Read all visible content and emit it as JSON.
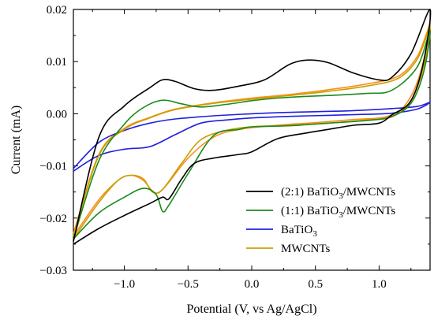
{
  "chart_data": {
    "type": "line",
    "xlabel": "Potential (V, vs Ag/AgCl)",
    "ylabel": "Current (mA)",
    "xlim": [
      -1.4,
      1.4
    ],
    "ylim": [
      -0.03,
      0.02
    ],
    "x_ticks": [
      -1.0,
      -0.5,
      0.0,
      0.5,
      1.0
    ],
    "x_tick_labels": [
      "−1.0",
      "−0.5",
      "0.0",
      "0.5",
      "1.0"
    ],
    "y_ticks": [
      -0.03,
      -0.02,
      -0.01,
      0.0,
      0.01,
      0.02
    ],
    "y_tick_labels": [
      "−0.03",
      "−0.02",
      "−0.01",
      "0.00",
      "0.01",
      "0.02"
    ],
    "grid": false,
    "legend_position": "bottom-right",
    "series": [
      {
        "name": "(2:1) BaTiO3/MWCNTs",
        "label_main": "(2:1) BaTiO",
        "label_sub": "3",
        "label_tail": "/MWCNTs",
        "color": "#000000",
        "points": [
          [
            -1.4,
            -0.025
          ],
          [
            -1.2,
            -0.022
          ],
          [
            -1.0,
            -0.0195
          ],
          [
            -0.8,
            -0.0172
          ],
          [
            -0.7,
            -0.016
          ],
          [
            -0.65,
            -0.0163
          ],
          [
            -0.55,
            -0.0125
          ],
          [
            -0.45,
            -0.0095
          ],
          [
            -0.3,
            -0.0085
          ],
          [
            -0.1,
            -0.0078
          ],
          [
            0.0,
            -0.0073
          ],
          [
            0.2,
            -0.0048
          ],
          [
            0.4,
            -0.0038
          ],
          [
            0.6,
            -0.003
          ],
          [
            0.8,
            -0.0022
          ],
          [
            1.0,
            -0.0018
          ],
          [
            1.1,
            -0.0002
          ],
          [
            1.25,
            0.0025
          ],
          [
            1.35,
            0.01
          ],
          [
            1.4,
            0.02
          ],
          [
            1.25,
            0.0115
          ],
          [
            1.1,
            0.007
          ],
          [
            1.0,
            0.0065
          ],
          [
            0.8,
            0.0078
          ],
          [
            0.6,
            0.0098
          ],
          [
            0.45,
            0.0103
          ],
          [
            0.3,
            0.0095
          ],
          [
            0.1,
            0.0065
          ],
          [
            -0.1,
            0.0053
          ],
          [
            -0.3,
            0.0045
          ],
          [
            -0.45,
            0.0048
          ],
          [
            -0.6,
            0.0062
          ],
          [
            -0.7,
            0.0065
          ],
          [
            -0.8,
            0.005
          ],
          [
            -1.0,
            0.0015
          ],
          [
            -1.2,
            -0.0045
          ],
          [
            -1.4,
            -0.0245
          ]
        ]
      },
      {
        "name": "(1:1) BaTiO3/MWCNTs",
        "label_main": "(1:1) BaTiO",
        "label_sub": "3",
        "label_tail": "/MWCNTs",
        "color": "#1c8a1c",
        "points": [
          [
            -1.4,
            -0.024
          ],
          [
            -1.2,
            -0.019
          ],
          [
            -1.0,
            -0.016
          ],
          [
            -0.85,
            -0.0143
          ],
          [
            -0.75,
            -0.0155
          ],
          [
            -0.7,
            -0.0187
          ],
          [
            -0.65,
            -0.0175
          ],
          [
            -0.5,
            -0.0115
          ],
          [
            -0.3,
            -0.0042
          ],
          [
            -0.1,
            -0.003
          ],
          [
            0.0,
            -0.0025
          ],
          [
            0.3,
            -0.0023
          ],
          [
            0.6,
            -0.0018
          ],
          [
            0.9,
            -0.0013
          ],
          [
            1.1,
            -0.0005
          ],
          [
            1.25,
            0.002
          ],
          [
            1.35,
            0.008
          ],
          [
            1.4,
            0.016
          ],
          [
            1.3,
            0.009
          ],
          [
            1.1,
            0.0045
          ],
          [
            0.9,
            0.0039
          ],
          [
            0.6,
            0.0035
          ],
          [
            0.4,
            0.0033
          ],
          [
            0.2,
            0.003
          ],
          [
            0.0,
            0.0025
          ],
          [
            -0.2,
            0.0018
          ],
          [
            -0.4,
            0.0013
          ],
          [
            -0.55,
            0.0019
          ],
          [
            -0.7,
            0.0026
          ],
          [
            -0.85,
            0.0012
          ],
          [
            -1.0,
            -0.002
          ],
          [
            -1.2,
            -0.009
          ],
          [
            -1.4,
            -0.024
          ]
        ]
      },
      {
        "name": "BaTiO3",
        "label_main": "BaTiO",
        "label_sub": "3",
        "label_tail": "",
        "color": "#2020e0",
        "points": [
          [
            -1.4,
            -0.011
          ],
          [
            -1.2,
            -0.008
          ],
          [
            -1.0,
            -0.0068
          ],
          [
            -0.8,
            -0.0063
          ],
          [
            -0.6,
            -0.004
          ],
          [
            -0.4,
            -0.0018
          ],
          [
            -0.2,
            -0.0012
          ],
          [
            0.0,
            -0.0008
          ],
          [
            0.3,
            -0.0005
          ],
          [
            0.6,
            -0.0003
          ],
          [
            0.9,
            -0.0001
          ],
          [
            1.1,
            0.0001
          ],
          [
            1.3,
            0.0009
          ],
          [
            1.4,
            0.0022
          ],
          [
            1.3,
            0.0014
          ],
          [
            1.1,
            0.001
          ],
          [
            0.8,
            0.0006
          ],
          [
            0.5,
            0.0004
          ],
          [
            0.2,
            0.0002
          ],
          [
            0.0,
            0.0
          ],
          [
            -0.3,
            -0.0004
          ],
          [
            -0.6,
            -0.001
          ],
          [
            -0.8,
            -0.0018
          ],
          [
            -1.0,
            -0.0032
          ],
          [
            -1.2,
            -0.0055
          ],
          [
            -1.4,
            -0.0105
          ]
        ]
      },
      {
        "name": "MWCNTs",
        "label_main": "MWCNTs",
        "label_sub": "",
        "label_tail": "",
        "color": "#c8a000",
        "points": [
          [
            -1.4,
            -0.024
          ],
          [
            -1.2,
            -0.017
          ],
          [
            -1.05,
            -0.0128
          ],
          [
            -0.95,
            -0.0118
          ],
          [
            -0.85,
            -0.0125
          ],
          [
            -0.78,
            -0.015
          ],
          [
            -0.7,
            -0.0145
          ],
          [
            -0.55,
            -0.0095
          ],
          [
            -0.4,
            -0.005
          ],
          [
            -0.2,
            -0.0032
          ],
          [
            0.0,
            -0.0025
          ],
          [
            0.3,
            -0.0022
          ],
          [
            0.6,
            -0.0018
          ],
          [
            0.9,
            -0.0012
          ],
          [
            1.1,
            -0.0006
          ],
          [
            1.25,
            0.0025
          ],
          [
            1.35,
            0.009
          ],
          [
            1.4,
            0.0165
          ],
          [
            1.3,
            0.0105
          ],
          [
            1.15,
            0.0068
          ],
          [
            0.9,
            0.0053
          ],
          [
            0.6,
            0.0043
          ],
          [
            0.3,
            0.0035
          ],
          [
            0.0,
            0.0028
          ],
          [
            -0.3,
            0.002
          ],
          [
            -0.6,
            0.0008
          ],
          [
            -0.8,
            -0.0008
          ],
          [
            -1.0,
            -0.003
          ],
          [
            -1.2,
            -0.008
          ],
          [
            -1.4,
            -0.0235
          ]
        ]
      },
      {
        "name": "",
        "label_main": "",
        "label_sub": "",
        "label_tail": "",
        "color": "#ff8c1a",
        "points": [
          [
            -1.4,
            -0.0235
          ],
          [
            -1.2,
            -0.0165
          ],
          [
            -1.05,
            -0.0128
          ],
          [
            -0.95,
            -0.0118
          ],
          [
            -0.85,
            -0.0128
          ],
          [
            -0.76,
            -0.0152
          ],
          [
            -0.68,
            -0.014
          ],
          [
            -0.5,
            -0.0085
          ],
          [
            -0.3,
            -0.0045
          ],
          [
            -0.1,
            -0.003
          ],
          [
            0.2,
            -0.0022
          ],
          [
            0.5,
            -0.0017
          ],
          [
            0.8,
            -0.0011
          ],
          [
            1.05,
            -0.0006
          ],
          [
            1.2,
            0.0015
          ],
          [
            1.32,
            0.0075
          ],
          [
            1.4,
            0.017
          ],
          [
            1.3,
            0.011
          ],
          [
            1.15,
            0.0072
          ],
          [
            0.9,
            0.0057
          ],
          [
            0.6,
            0.0046
          ],
          [
            0.3,
            0.0037
          ],
          [
            0.0,
            0.003
          ],
          [
            -0.3,
            0.0021
          ],
          [
            -0.6,
            0.0009
          ],
          [
            -0.8,
            -0.0007
          ],
          [
            -1.0,
            -0.0028
          ],
          [
            -1.2,
            -0.0078
          ],
          [
            -1.4,
            -0.023
          ]
        ]
      }
    ]
  }
}
